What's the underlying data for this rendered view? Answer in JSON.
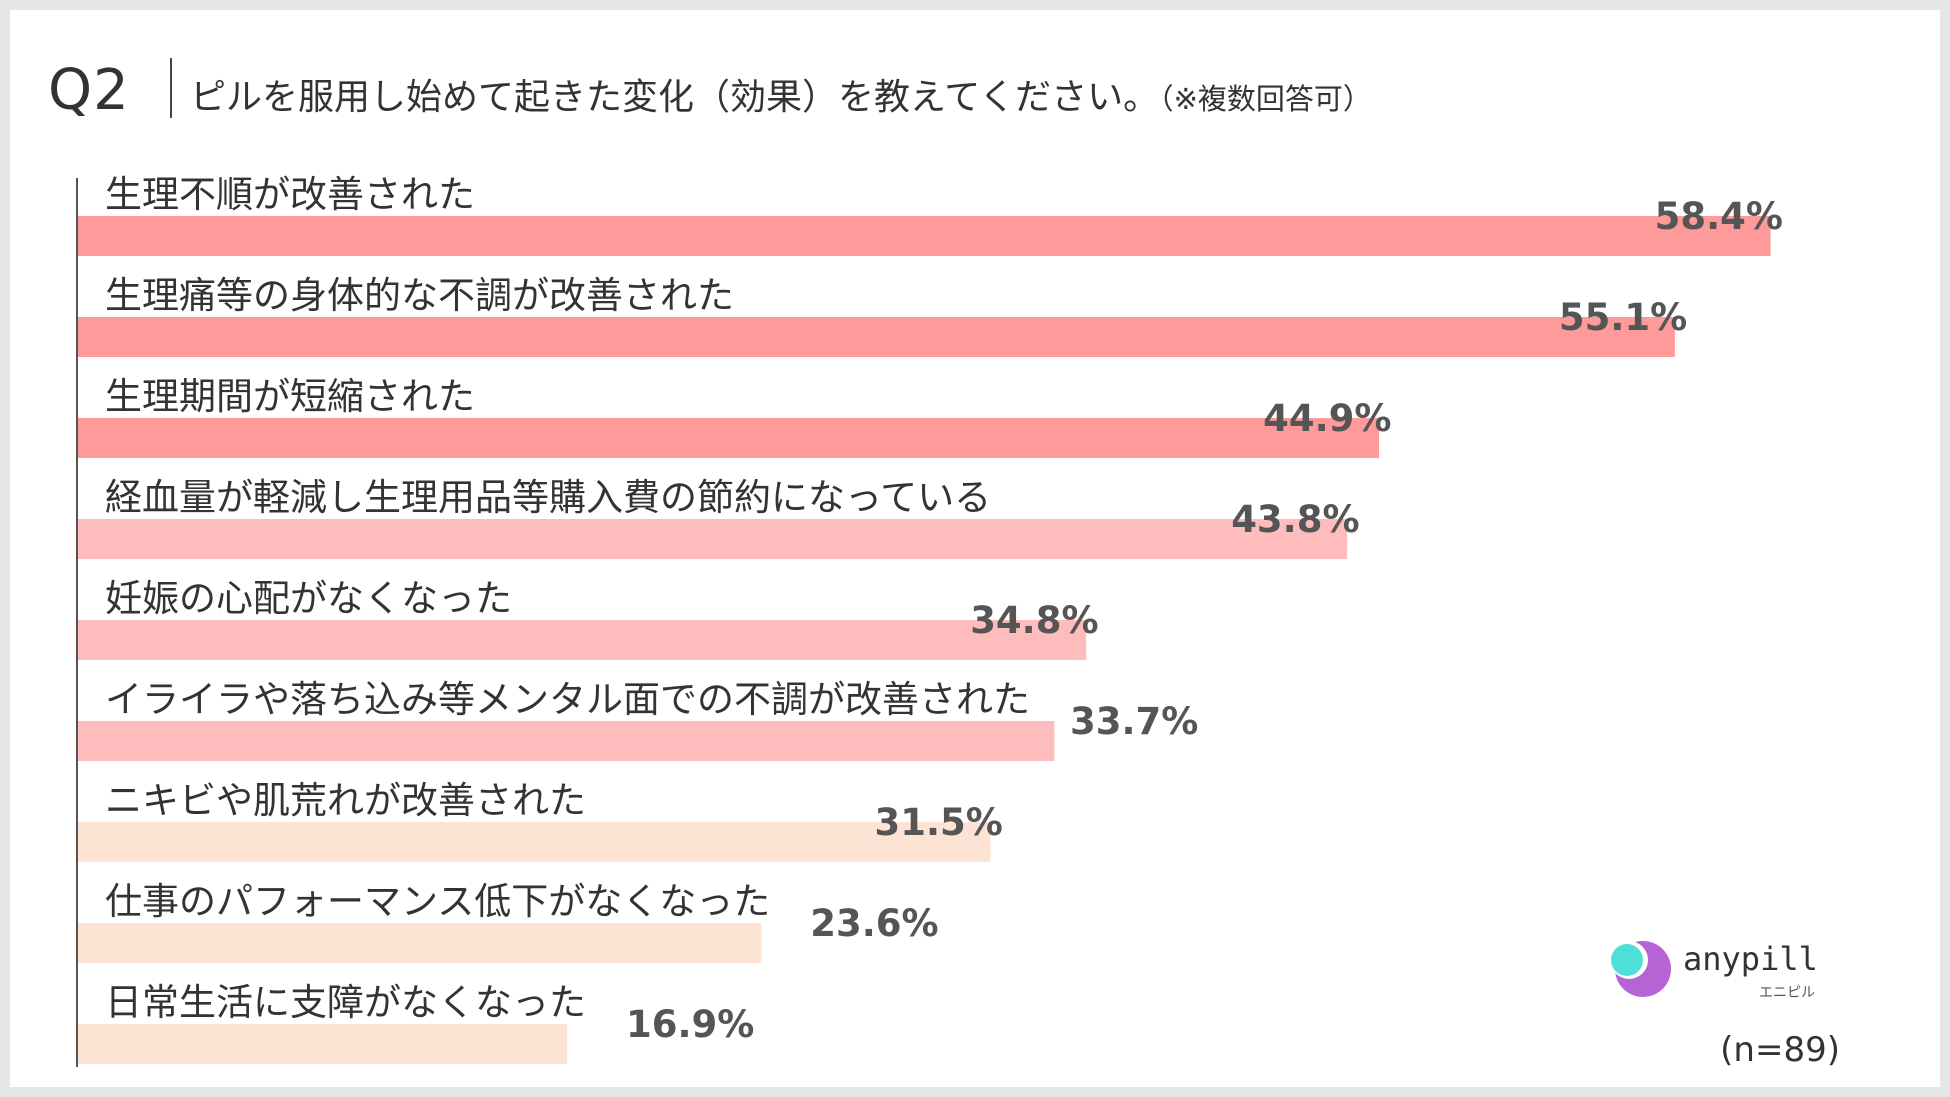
{
  "header": {
    "question_no": "Q2",
    "question": "ピルを服用し始めて起きた変化（効果）を教えてください。",
    "note": "（※複数回答可）"
  },
  "sample": "(n=89)",
  "logo": {
    "name": "anypill",
    "sub": "エニピル"
  },
  "colors": {
    "bar_strong": "#ff9a9a",
    "bar_medium": "#ffbcbc",
    "bar_light": "#fce3d4",
    "value_text": "#555555",
    "axis": "#555555"
  },
  "chart_data": {
    "type": "bar",
    "orientation": "horizontal",
    "xlim": [
      0,
      60
    ],
    "categories": [
      "生理不順が改善された",
      "生理痛等の身体的な不調が改善された",
      "生理期間が短縮された",
      "経血量が軽減し生理用品等購入費の節約になっている",
      "妊娠の心配がなくなった",
      "イライラや落ち込み等メンタル面での不調が改善された",
      "ニキビや肌荒れが改善された",
      "仕事のパフォーマンス低下がなくなった",
      "日常生活に支障がなくなった"
    ],
    "values": [
      58.4,
      55.1,
      44.9,
      43.8,
      34.8,
      33.7,
      31.5,
      23.6,
      16.9
    ],
    "value_labels": [
      "58.4%",
      "55.1%",
      "44.9%",
      "43.8%",
      "34.8%",
      "33.7%",
      "31.5%",
      "23.6%",
      "16.9%"
    ],
    "color_groups": [
      "strong",
      "strong",
      "strong",
      "medium",
      "medium",
      "medium",
      "light",
      "light",
      "light"
    ]
  }
}
